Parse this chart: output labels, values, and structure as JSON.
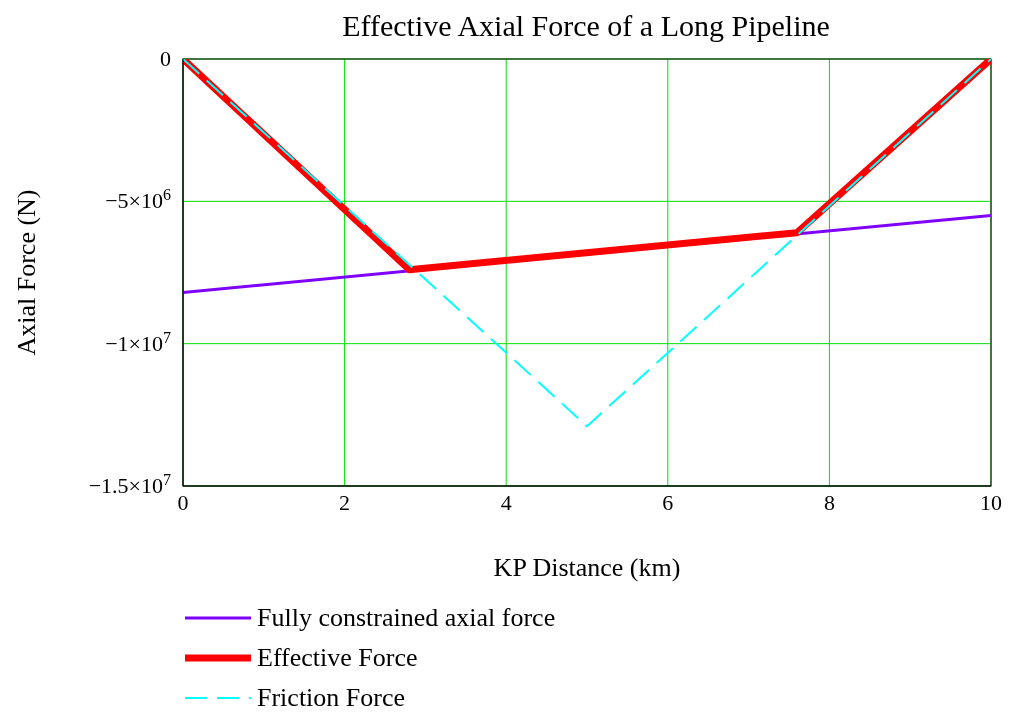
{
  "chart_data": {
    "type": "line",
    "title": "Effective Axial Force of a Long Pipeline",
    "xlabel": "KP Distance (km)",
    "ylabel": "Axial Force (N)",
    "xlim": [
      0,
      10
    ],
    "xticks": [
      0,
      2,
      4,
      6,
      8,
      10
    ],
    "ylim": [
      -15000000,
      0
    ],
    "yticks": [
      {
        "value": -15000000,
        "label": "−1.5×10$^{7}$"
      },
      {
        "value": -10000000,
        "label": "−1×10$^{7}$"
      },
      {
        "value": -5000000,
        "label": "−5×10$^{6}$"
      },
      0
    ],
    "grid": true,
    "legend": "bottom",
    "series": [
      {
        "name": "Fully constrained axial force",
        "color": "#8000ff",
        "line_style": "solid",
        "x": [
          0,
          10
        ],
        "values": [
          -8200000,
          -5500000
        ]
      },
      {
        "name": "Effective Force",
        "color": "#ff0000",
        "line_style": "solid",
        "x": [
          0,
          2.8,
          7.6,
          10
        ],
        "values": [
          0,
          -7400000,
          -6100000,
          0
        ]
      },
      {
        "name": "Friction Force",
        "color": "#00ffff",
        "line_style": "dashed",
        "x": [
          0,
          5,
          10
        ],
        "values": [
          0,
          -12900000,
          0
        ]
      }
    ]
  }
}
